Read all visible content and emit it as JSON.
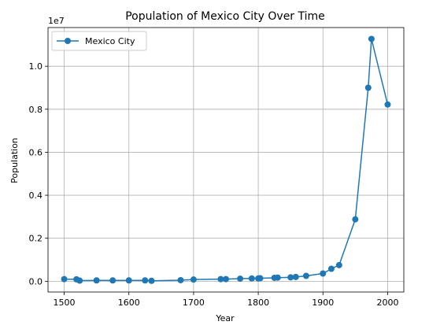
{
  "chart_data": {
    "type": "line",
    "title": "Population of Mexico City Over Time",
    "xlabel": "Year",
    "ylabel": "Population",
    "offset_text": "1e7",
    "xlim": [
      1475,
      2025
    ],
    "ylim": [
      -0.05,
      1.18
    ],
    "x_ticks": [
      1500,
      1600,
      1700,
      1800,
      1900,
      2000
    ],
    "y_ticks": [
      0.0,
      0.2,
      0.4,
      0.6,
      0.8,
      1.0
    ],
    "y_tick_labels": [
      "0.0",
      "0.2",
      "0.4",
      "0.6",
      "0.8",
      "1.0"
    ],
    "grid": true,
    "legend_position": "top-left",
    "series": [
      {
        "name": "Mexico City",
        "color": "#1f77b4",
        "marker": "circle",
        "x": [
          1500,
          1519,
          1524,
          1550,
          1575,
          1600,
          1625,
          1635,
          1680,
          1700,
          1742,
          1750,
          1772,
          1790,
          1800,
          1803,
          1825,
          1830,
          1850,
          1858,
          1874,
          1900,
          1913,
          1925,
          1950,
          1970,
          1975,
          2000
        ],
        "values": [
          0.01,
          0.009,
          0.003,
          0.004,
          0.004,
          0.004,
          0.004,
          0.002,
          0.005,
          0.008,
          0.01,
          0.01,
          0.012,
          0.013,
          0.013,
          0.014,
          0.016,
          0.017,
          0.018,
          0.02,
          0.025,
          0.036,
          0.058,
          0.075,
          0.288,
          0.9,
          1.127,
          0.822
        ]
      }
    ]
  }
}
